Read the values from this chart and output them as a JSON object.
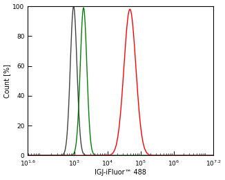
{
  "title": "",
  "xlabel": "IGJ-iFluor™ 488",
  "ylabel": "Count [%]",
  "xmin": 1.6,
  "xmax": 7.2,
  "ymin": 0,
  "ymax": 100,
  "yticks": [
    0,
    20,
    40,
    60,
    80,
    100
  ],
  "xtick_positions": [
    1.6,
    3,
    4,
    5,
    6,
    7.2
  ],
  "curves": [
    {
      "color": "#404040",
      "peak_log": 2.98,
      "sigma_log": 0.1,
      "peak_height": 100
    },
    {
      "color": "#008000",
      "peak_log": 3.28,
      "sigma_log": 0.1,
      "peak_height": 99
    },
    {
      "color": "#ff0000",
      "peak_log": 4.68,
      "sigma_log": 0.18,
      "peak_height": 98
    }
  ],
  "background_color": "#ffffff",
  "linewidth": 1.0
}
